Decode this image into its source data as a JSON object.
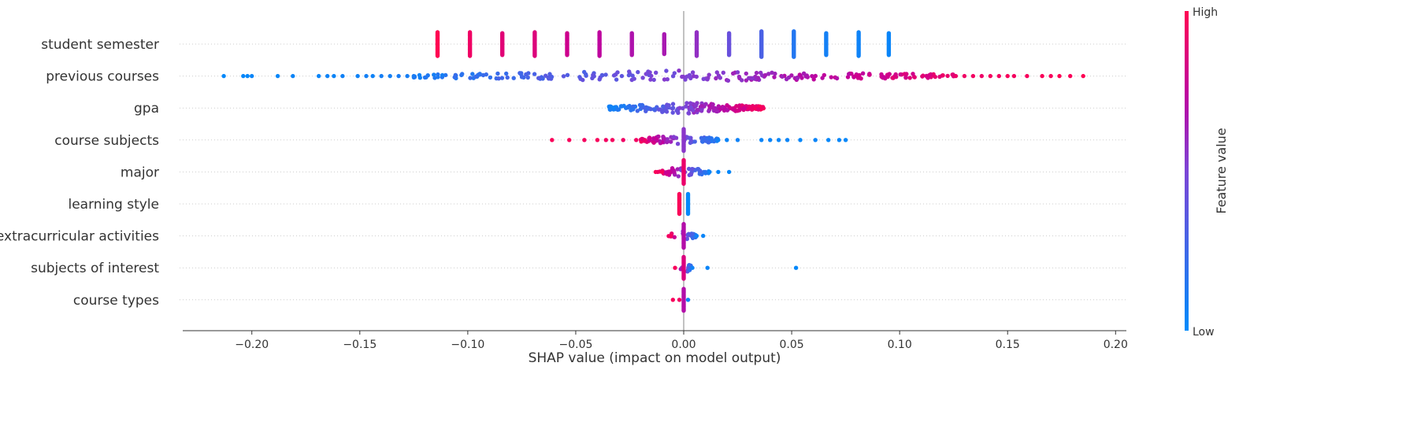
{
  "chart_data": {
    "type": "scatter",
    "subtype": "shap-beeswarm",
    "title": "",
    "xlabel": "SHAP value (impact on model output)",
    "ylabel": "",
    "xlim": [
      -0.232,
      0.205
    ],
    "xticks": [
      -0.2,
      -0.15,
      -0.1,
      -0.05,
      0.0,
      0.05,
      0.1,
      0.15,
      0.2
    ],
    "xtick_labels": [
      "−0.20",
      "−0.15",
      "−0.10",
      "−0.05",
      "0.00",
      "0.05",
      "0.10",
      "0.15",
      "0.20"
    ],
    "features": [
      "student semester",
      "previous courses",
      "gpa",
      "course subjects",
      "major",
      "learning style",
      "extracurricular activities",
      "subjects of interest",
      "course types"
    ],
    "colorbar": {
      "title": "Feature value",
      "high_label": "High",
      "low_label": "Low",
      "low_color": "#008bfb",
      "high_color": "#ff0052"
    },
    "grid": false,
    "clusters": [
      {
        "feature": 0,
        "x": -0.114,
        "v": 1.0,
        "n": 26
      },
      {
        "feature": 0,
        "x": -0.099,
        "v": 0.94,
        "n": 26
      },
      {
        "feature": 0,
        "x": -0.084,
        "v": 0.88,
        "n": 24
      },
      {
        "feature": 0,
        "x": -0.069,
        "v": 0.86,
        "n": 26
      },
      {
        "feature": 0,
        "x": -0.054,
        "v": 0.8,
        "n": 24
      },
      {
        "feature": 0,
        "x": -0.039,
        "v": 0.74,
        "n": 26
      },
      {
        "feature": 0,
        "x": -0.024,
        "v": 0.68,
        "n": 24
      },
      {
        "feature": 0,
        "x": -0.009,
        "v": 0.66,
        "n": 22
      },
      {
        "feature": 0,
        "x": 0.006,
        "v": 0.58,
        "n": 26
      },
      {
        "feature": 0,
        "x": 0.021,
        "v": 0.42,
        "n": 24
      },
      {
        "feature": 0,
        "x": 0.036,
        "v": 0.3,
        "n": 28
      },
      {
        "feature": 0,
        "x": 0.051,
        "v": 0.14,
        "n": 28
      },
      {
        "feature": 0,
        "x": 0.066,
        "v": 0.08,
        "n": 24
      },
      {
        "feature": 0,
        "x": 0.081,
        "v": 0.06,
        "n": 26
      },
      {
        "feature": 0,
        "x": 0.095,
        "v": 0.04,
        "n": 24
      },
      {
        "feature": 3,
        "x": 0.0,
        "v": 0.55,
        "n": 24
      },
      {
        "feature": 4,
        "x": 0.0,
        "v": 0.92,
        "n": 26
      },
      {
        "feature": 5,
        "x": -0.002,
        "v": 0.98,
        "n": 22
      },
      {
        "feature": 5,
        "x": 0.002,
        "v": 0.02,
        "n": 22
      },
      {
        "feature": 6,
        "x": 0.0,
        "v": 0.7,
        "n": 26
      },
      {
        "feature": 7,
        "x": 0.0,
        "v": 0.85,
        "n": 24
      },
      {
        "feature": 8,
        "x": 0.0,
        "v": 0.7,
        "n": 24
      }
    ],
    "points": [
      {
        "feature": 1,
        "x": -0.213,
        "v": 0.02
      },
      {
        "feature": 1,
        "x": -0.204,
        "v": 0.03
      },
      {
        "feature": 1,
        "x": -0.202,
        "v": 0.02
      },
      {
        "feature": 1,
        "x": -0.2,
        "v": 0.04
      },
      {
        "feature": 1,
        "x": -0.188,
        "v": 0.03
      },
      {
        "feature": 1,
        "x": -0.181,
        "v": 0.05
      },
      {
        "feature": 1,
        "x": -0.169,
        "v": 0.04
      },
      {
        "feature": 1,
        "x": -0.165,
        "v": 0.06
      },
      {
        "feature": 1,
        "x": -0.162,
        "v": 0.05
      },
      {
        "feature": 1,
        "x": -0.158,
        "v": 0.07
      },
      {
        "feature": 1,
        "x": -0.151,
        "v": 0.06
      },
      {
        "feature": 1,
        "x": -0.147,
        "v": 0.08
      },
      {
        "feature": 1,
        "x": -0.144,
        "v": 0.06
      },
      {
        "feature": 1,
        "x": -0.14,
        "v": 0.09
      },
      {
        "feature": 1,
        "x": -0.136,
        "v": 0.08
      },
      {
        "feature": 1,
        "x": -0.132,
        "v": 0.1
      },
      {
        "feature": 1,
        "x": -0.128,
        "v": 0.09
      },
      {
        "feature": 1,
        "x": -0.125,
        "v": 0.11
      },
      {
        "feature": 1,
        "x": 0.126,
        "v": 0.93
      },
      {
        "feature": 1,
        "x": 0.13,
        "v": 0.94
      },
      {
        "feature": 1,
        "x": 0.134,
        "v": 0.95
      },
      {
        "feature": 1,
        "x": 0.138,
        "v": 0.93
      },
      {
        "feature": 1,
        "x": 0.142,
        "v": 0.96
      },
      {
        "feature": 1,
        "x": 0.146,
        "v": 0.95
      },
      {
        "feature": 1,
        "x": 0.15,
        "v": 0.97
      },
      {
        "feature": 1,
        "x": 0.153,
        "v": 0.96
      },
      {
        "feature": 1,
        "x": 0.159,
        "v": 0.97
      },
      {
        "feature": 1,
        "x": 0.166,
        "v": 0.98
      },
      {
        "feature": 1,
        "x": 0.17,
        "v": 0.97
      },
      {
        "feature": 1,
        "x": 0.174,
        "v": 0.99
      },
      {
        "feature": 1,
        "x": 0.179,
        "v": 0.98
      },
      {
        "feature": 1,
        "x": 0.185,
        "v": 1.0
      },
      {
        "feature": 3,
        "x": -0.061,
        "v": 0.98
      },
      {
        "feature": 3,
        "x": -0.053,
        "v": 0.97
      },
      {
        "feature": 3,
        "x": -0.046,
        "v": 0.96
      },
      {
        "feature": 3,
        "x": -0.04,
        "v": 0.97
      },
      {
        "feature": 3,
        "x": -0.036,
        "v": 0.95
      },
      {
        "feature": 3,
        "x": -0.033,
        "v": 0.96
      },
      {
        "feature": 3,
        "x": -0.028,
        "v": 0.94
      },
      {
        "feature": 3,
        "x": -0.022,
        "v": 0.95
      },
      {
        "feature": 3,
        "x": -0.018,
        "v": 0.93
      },
      {
        "feature": 3,
        "x": 0.016,
        "v": 0.06
      },
      {
        "feature": 3,
        "x": 0.02,
        "v": 0.05
      },
      {
        "feature": 3,
        "x": 0.025,
        "v": 0.06
      },
      {
        "feature": 3,
        "x": 0.036,
        "v": 0.04
      },
      {
        "feature": 3,
        "x": 0.04,
        "v": 0.05
      },
      {
        "feature": 3,
        "x": 0.044,
        "v": 0.03
      },
      {
        "feature": 3,
        "x": 0.048,
        "v": 0.04
      },
      {
        "feature": 3,
        "x": 0.054,
        "v": 0.03
      },
      {
        "feature": 3,
        "x": 0.061,
        "v": 0.04
      },
      {
        "feature": 3,
        "x": 0.067,
        "v": 0.02
      },
      {
        "feature": 3,
        "x": 0.072,
        "v": 0.03
      },
      {
        "feature": 3,
        "x": 0.075,
        "v": 0.02
      },
      {
        "feature": 4,
        "x": -0.013,
        "v": 0.97
      },
      {
        "feature": 4,
        "x": -0.01,
        "v": 0.98
      },
      {
        "feature": 4,
        "x": 0.012,
        "v": 0.05
      },
      {
        "feature": 4,
        "x": 0.016,
        "v": 0.04
      },
      {
        "feature": 4,
        "x": 0.021,
        "v": 0.03
      },
      {
        "feature": 6,
        "x": -0.006,
        "v": 0.97
      },
      {
        "feature": 6,
        "x": 0.006,
        "v": 0.06
      },
      {
        "feature": 6,
        "x": 0.009,
        "v": 0.04
      },
      {
        "feature": 7,
        "x": -0.004,
        "v": 0.97
      },
      {
        "feature": 7,
        "x": 0.004,
        "v": 0.06
      },
      {
        "feature": 7,
        "x": 0.011,
        "v": 0.04
      },
      {
        "feature": 7,
        "x": 0.052,
        "v": 0.02
      },
      {
        "feature": 8,
        "x": -0.005,
        "v": 0.97
      },
      {
        "feature": 8,
        "x": -0.002,
        "v": 0.95
      },
      {
        "feature": 8,
        "x": 0.002,
        "v": 0.05
      }
    ],
    "spreads": [
      {
        "feature": 1,
        "from": -0.125,
        "to": 0.126,
        "v_low": 0.1,
        "v_high": 0.92,
        "n": 240
      },
      {
        "feature": 2,
        "from": -0.035,
        "to": 0.038,
        "v_low": 0.04,
        "v_high": 0.98,
        "n": 190
      },
      {
        "feature": 3,
        "from": -0.02,
        "to": 0.016,
        "v_low": 0.92,
        "v_high": 0.1,
        "n": 70
      },
      {
        "feature": 4,
        "from": -0.012,
        "to": 0.012,
        "v_low": 0.95,
        "v_high": 0.08,
        "n": 50
      },
      {
        "feature": 6,
        "from": -0.007,
        "to": 0.006,
        "v_low": 0.95,
        "v_high": 0.1,
        "n": 20
      },
      {
        "feature": 7,
        "from": -0.004,
        "to": 0.004,
        "v_low": 0.92,
        "v_high": 0.1,
        "n": 12
      }
    ]
  }
}
